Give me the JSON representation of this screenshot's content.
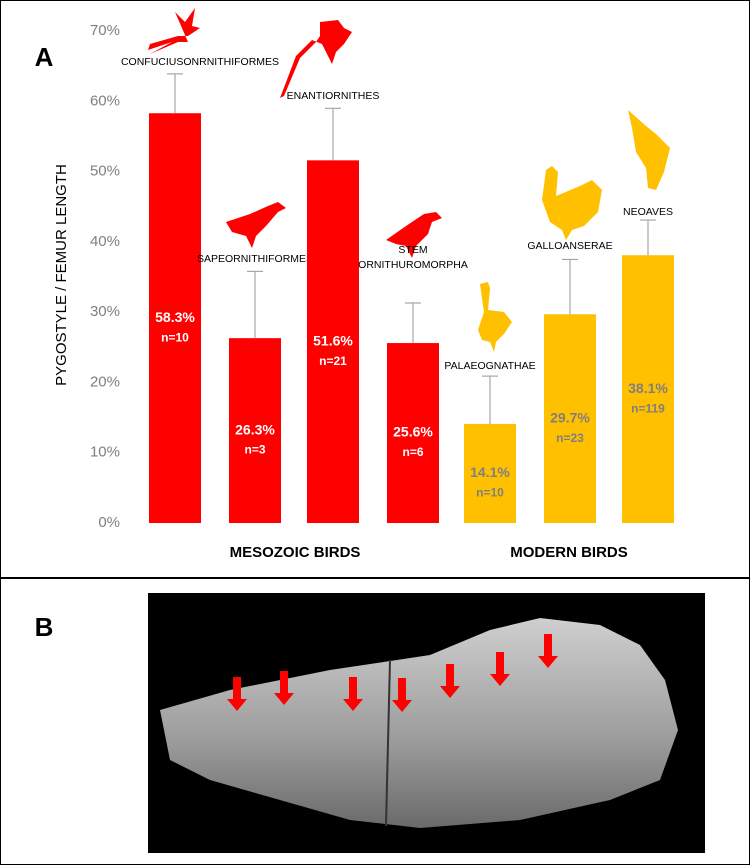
{
  "panels": {
    "a": "A",
    "b": "B"
  },
  "chart_data": {
    "type": "bar",
    "ylabel": "PYGOSTYLE / FEMUR LENGTH",
    "categories": [
      "CONFUCIUSONRNITHIFORMES",
      "SAPEORNITHIFORMES",
      "ENANTIORNITHES",
      "STEM ORNITHUROMORPHA",
      "PALAEOGNATHAE",
      "GALLOANSERAE",
      "NEOAVES"
    ],
    "values": [
      58.3,
      26.3,
      51.6,
      25.6,
      14.1,
      29.7,
      38.1
    ],
    "value_labels": [
      "58.3%",
      "26.3%",
      "51.6%",
      "25.6%",
      "14.1%",
      "29.7%",
      "38.1%"
    ],
    "n_labels": [
      "n=10",
      "n=3",
      "n=21",
      "n=6",
      "n=10",
      "n=23",
      "n=119"
    ],
    "errors": [
      5.6,
      9.5,
      7.4,
      5.7,
      6.8,
      7.8,
      5.0
    ],
    "colors": [
      "#ff0000",
      "#ff0000",
      "#ff0000",
      "#ff0000",
      "#ffc000",
      "#ffc000",
      "#ffc000"
    ],
    "label_colors": [
      "#ffffff",
      "#ffffff",
      "#ffffff",
      "#ffffff",
      "#7f7f7f",
      "#7f7f7f",
      "#7f7f7f"
    ],
    "groups": [
      "MESOZOIC BIRDS",
      "MODERN BIRDS"
    ],
    "ylim": [
      0,
      70
    ],
    "yticks": [
      {
        "value": 0,
        "label": "0%"
      },
      {
        "value": 10,
        "label": "10%"
      },
      {
        "value": 20,
        "label": "20%"
      },
      {
        "value": 30,
        "label": "30%"
      },
      {
        "value": 40,
        "label": "40%"
      },
      {
        "value": 50,
        "label": "50%"
      },
      {
        "value": 60,
        "label": "60%"
      },
      {
        "value": 70,
        "label": "70%"
      }
    ],
    "grid": false
  }
}
